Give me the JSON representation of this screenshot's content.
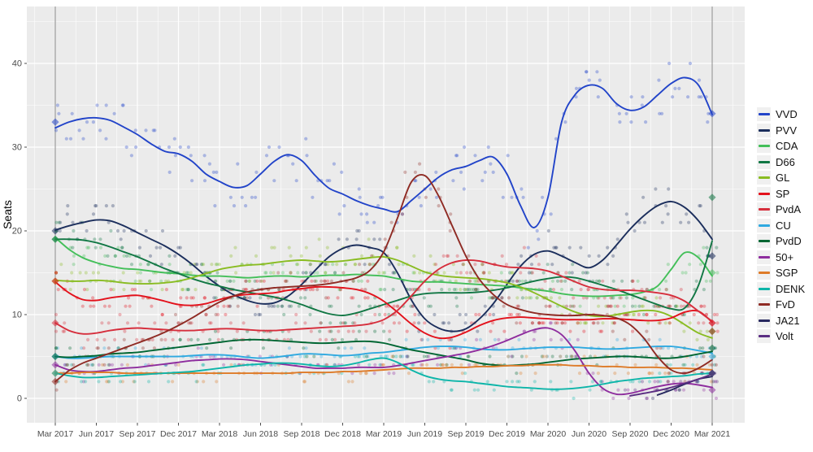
{
  "figure": {
    "ylabel": "Seats",
    "panel_bg": "#ebebeb",
    "grid_color": "#ffffff",
    "axis_text_color": "#4d4d4d",
    "vline_color": "#8a8a8a",
    "legend_key_bg": "#f0f0f0"
  },
  "axes": {
    "y_ticks": [
      0,
      10,
      20,
      30,
      40
    ],
    "x_ticks": [
      "Mar 2017",
      "Jun 2017",
      "Sep 2017",
      "Dec 2017",
      "Mar 2018",
      "Jun 2018",
      "Sep 2018",
      "Dec 2018",
      "Mar 2019",
      "Jun 2019",
      "Sep 2019",
      "Dec 2019",
      "Mar 2020",
      "Jun 2020",
      "Sep 2020",
      "Dec 2020",
      "Mar 2021"
    ]
  },
  "chart_data": {
    "type": "scatter",
    "subtype": "polls-with-smoothed-trend-lines",
    "title": "",
    "xlabel": "",
    "ylabel": "Seats",
    "ylim": [
      0,
      46.5
    ],
    "x_monthly": {
      "start": "Mar 2017",
      "end": "Mar 2021",
      "n_points": 49
    },
    "tick_labels": [
      "Mar 2017",
      "Jun 2017",
      "Sep 2017",
      "Dec 2017",
      "Mar 2018",
      "Jun 2018",
      "Sep 2018",
      "Dec 2018",
      "Mar 2019",
      "Jun 2019",
      "Sep 2019",
      "Dec 2019",
      "Mar 2020",
      "Jun 2020",
      "Sep 2020",
      "Dec 2020",
      "Mar 2021"
    ],
    "election_vlines": [
      "Mar 2017",
      "Mar 2021"
    ],
    "legend_position": "right",
    "series": [
      {
        "name": "VVD",
        "color": "#2244c9",
        "election_2017": 33,
        "election_2021": 34,
        "values": [
          32.3,
          33.0,
          33.4,
          33.5,
          33.2,
          32.4,
          31.5,
          30.4,
          29.5,
          29.2,
          28.3,
          26.8,
          25.9,
          25.2,
          25.4,
          26.8,
          28.3,
          29.1,
          28.4,
          26.6,
          25.1,
          24.4,
          23.6,
          23.0,
          22.6,
          22.3,
          23.6,
          25.0,
          26.4,
          27.3,
          27.7,
          28.4,
          28.8,
          26.8,
          23.0,
          20.4,
          24.0,
          33.0,
          36.3,
          37.4,
          37.0,
          35.2,
          34.4,
          34.8,
          36.2,
          37.6,
          38.3,
          37.4,
          33.9
        ]
      },
      {
        "name": "PVV",
        "color": "#1b2e5c",
        "election_2017": 20,
        "election_2021": 17,
        "values": [
          20.1,
          20.6,
          21.0,
          21.3,
          21.2,
          20.6,
          19.8,
          19.0,
          18.2,
          17.2,
          16.0,
          14.6,
          13.4,
          12.4,
          11.7,
          11.3,
          11.4,
          12.2,
          13.6,
          15.3,
          16.9,
          17.9,
          18.3,
          18.0,
          17.4,
          15.0,
          11.8,
          9.5,
          8.4,
          8.0,
          8.3,
          9.5,
          11.3,
          13.6,
          15.8,
          17.2,
          17.6,
          17.0,
          16.2,
          15.6,
          16.5,
          18.3,
          20.2,
          21.8,
          23.0,
          23.5,
          22.8,
          21.2,
          19.0
        ]
      },
      {
        "name": "CDA",
        "color": "#43bf59",
        "election_2017": 19,
        "election_2021": 15,
        "values": [
          19.2,
          17.8,
          16.8,
          16.2,
          15.8,
          15.5,
          15.4,
          15.2,
          15.0,
          14.9,
          14.7,
          14.6,
          14.6,
          14.5,
          14.4,
          14.5,
          14.6,
          14.6,
          14.5,
          14.6,
          14.7,
          14.7,
          14.8,
          14.7,
          14.6,
          14.3,
          14.0,
          13.9,
          13.9,
          13.8,
          13.7,
          13.6,
          13.5,
          13.4,
          13.2,
          13.0,
          12.8,
          12.5,
          12.3,
          12.2,
          12.2,
          12.3,
          12.4,
          12.7,
          13.4,
          15.4,
          17.4,
          16.8,
          14.6
        ]
      },
      {
        "name": "D66",
        "color": "#117744",
        "election_2017": 19,
        "election_2021": 24,
        "values": [
          19.0,
          19.0,
          18.9,
          18.6,
          18.1,
          17.5,
          16.9,
          16.2,
          15.5,
          14.9,
          14.3,
          13.8,
          13.4,
          13.0,
          12.7,
          12.4,
          12.1,
          11.7,
          11.2,
          10.6,
          10.1,
          9.9,
          10.2,
          10.7,
          11.2,
          11.7,
          12.2,
          12.5,
          12.6,
          12.6,
          12.6,
          12.7,
          12.9,
          13.2,
          13.6,
          14.0,
          14.3,
          14.5,
          14.4,
          14.0,
          13.5,
          13.0,
          12.4,
          11.8,
          11.2,
          10.7,
          10.8,
          13.5,
          18.8
        ]
      },
      {
        "name": "GL",
        "color": "#89bc21",
        "election_2017": 14,
        "election_2021": 8,
        "values": [
          14.1,
          14.0,
          14.0,
          14.1,
          14.0,
          13.8,
          13.7,
          13.7,
          13.8,
          14.0,
          14.4,
          14.9,
          15.4,
          15.7,
          15.9,
          16.0,
          16.2,
          16.4,
          16.5,
          16.4,
          16.3,
          16.4,
          16.6,
          16.8,
          16.9,
          16.5,
          15.8,
          15.1,
          14.7,
          14.5,
          14.4,
          14.3,
          14.1,
          13.8,
          13.3,
          12.6,
          11.8,
          11.0,
          10.3,
          9.9,
          9.8,
          10.0,
          10.3,
          10.5,
          10.4,
          9.8,
          8.8,
          7.8,
          7.2
        ]
      },
      {
        "name": "SP",
        "color": "#e3111b",
        "election_2017": 14,
        "election_2021": 9,
        "values": [
          13.9,
          12.6,
          11.8,
          11.7,
          12.0,
          12.2,
          12.3,
          12.0,
          11.6,
          11.2,
          11.1,
          11.3,
          11.8,
          12.2,
          12.4,
          12.5,
          12.6,
          12.9,
          13.1,
          13.3,
          13.3,
          13.2,
          13.0,
          12.5,
          11.6,
          10.3,
          8.9,
          7.8,
          7.2,
          7.3,
          7.9,
          8.7,
          9.3,
          9.6,
          9.7,
          9.6,
          9.5,
          9.4,
          9.4,
          9.4,
          9.5,
          9.5,
          9.4,
          9.3,
          9.3,
          9.6,
          10.3,
          10.4,
          9.1
        ]
      },
      {
        "name": "PvdA",
        "color": "#d62e3c",
        "election_2017": 9,
        "election_2021": 9,
        "values": [
          9.0,
          8.1,
          7.7,
          7.8,
          8.1,
          8.3,
          8.4,
          8.3,
          8.2,
          8.1,
          8.1,
          8.2,
          8.3,
          8.3,
          8.2,
          8.1,
          8.1,
          8.2,
          8.3,
          8.4,
          8.5,
          8.6,
          8.7,
          8.9,
          9.4,
          10.5,
          12.2,
          14.0,
          15.4,
          16.2,
          16.5,
          16.4,
          16.0,
          15.7,
          15.6,
          15.5,
          15.2,
          14.6,
          13.9,
          13.3,
          13.0,
          12.9,
          12.9,
          12.8,
          12.6,
          12.3,
          11.6,
          10.4,
          9.2
        ]
      },
      {
        "name": "CU",
        "color": "#2fa9e0",
        "election_2017": 5,
        "election_2021": 5,
        "values": [
          5.0,
          4.8,
          4.8,
          4.9,
          5.0,
          5.0,
          5.0,
          5.0,
          5.0,
          5.0,
          5.1,
          5.2,
          5.2,
          5.1,
          4.9,
          4.8,
          4.9,
          5.1,
          5.3,
          5.3,
          5.2,
          5.1,
          5.2,
          5.4,
          5.5,
          5.7,
          5.9,
          6.1,
          6.2,
          6.2,
          6.1,
          5.9,
          5.8,
          5.8,
          5.9,
          6.0,
          6.1,
          6.1,
          6.1,
          6.0,
          5.9,
          5.9,
          6.0,
          6.1,
          6.2,
          6.2,
          6.0,
          5.7,
          5.4
        ]
      },
      {
        "name": "PvdD",
        "color": "#006633",
        "election_2017": 5,
        "election_2021": 6,
        "values": [
          5.0,
          4.9,
          5.0,
          5.1,
          5.3,
          5.4,
          5.5,
          5.7,
          5.9,
          6.1,
          6.3,
          6.5,
          6.7,
          6.9,
          7.0,
          7.0,
          6.9,
          6.8,
          6.7,
          6.6,
          6.6,
          6.7,
          6.8,
          6.8,
          6.6,
          6.2,
          5.8,
          5.5,
          5.2,
          4.9,
          4.6,
          4.2,
          4.0,
          3.9,
          4.0,
          4.1,
          4.3,
          4.5,
          4.7,
          4.8,
          4.9,
          5.0,
          5.0,
          4.9,
          4.8,
          4.8,
          5.0,
          5.3,
          5.6
        ]
      },
      {
        "name": "50+",
        "color": "#8e2d9e",
        "election_2017": 4,
        "election_2021": 1,
        "values": [
          4.0,
          3.4,
          3.2,
          3.2,
          3.4,
          3.6,
          3.7,
          3.9,
          4.1,
          4.3,
          4.5,
          4.6,
          4.7,
          4.7,
          4.6,
          4.4,
          4.2,
          4.0,
          3.8,
          3.6,
          3.6,
          3.6,
          3.7,
          3.7,
          3.7,
          3.9,
          4.2,
          4.5,
          4.8,
          5.1,
          5.4,
          5.8,
          6.3,
          6.9,
          7.6,
          8.2,
          8.4,
          7.6,
          5.6,
          3.0,
          1.2,
          0.5,
          0.6,
          1.0,
          1.4,
          1.7,
          1.8,
          1.6,
          1.3
        ]
      },
      {
        "name": "SGP",
        "color": "#de7b28",
        "election_2017": 3,
        "election_2021": 3,
        "values": [
          3.0,
          3.0,
          3.1,
          3.1,
          3.1,
          3.0,
          3.0,
          3.0,
          3.0,
          3.0,
          3.0,
          3.0,
          3.0,
          3.0,
          3.0,
          3.0,
          3.0,
          3.0,
          3.1,
          3.1,
          3.1,
          3.2,
          3.2,
          3.3,
          3.4,
          3.5,
          3.6,
          3.6,
          3.6,
          3.7,
          3.7,
          3.8,
          3.8,
          3.9,
          3.9,
          4.0,
          4.0,
          4.0,
          3.9,
          3.9,
          3.8,
          3.8,
          3.7,
          3.7,
          3.7,
          3.6,
          3.6,
          3.5,
          3.4
        ]
      },
      {
        "name": "DENK",
        "color": "#0db5a9",
        "election_2017": 3,
        "election_2021": 3,
        "values": [
          3.0,
          2.7,
          2.5,
          2.5,
          2.6,
          2.7,
          2.8,
          2.9,
          3.0,
          3.1,
          3.2,
          3.4,
          3.6,
          3.8,
          4.0,
          4.1,
          4.2,
          4.2,
          4.1,
          3.9,
          3.8,
          3.9,
          4.2,
          4.6,
          4.8,
          4.3,
          3.4,
          2.7,
          2.3,
          2.1,
          2.0,
          1.8,
          1.6,
          1.4,
          1.3,
          1.2,
          1.1,
          1.1,
          1.2,
          1.4,
          1.7,
          2.0,
          2.2,
          2.4,
          2.5,
          2.6,
          2.7,
          2.9,
          3.0
        ]
      },
      {
        "name": "FvD",
        "color": "#8f2b24",
        "election_2017": 2,
        "election_2021": 8,
        "values": [
          2.0,
          3.3,
          4.2,
          4.8,
          5.4,
          6.0,
          6.6,
          7.2,
          7.9,
          8.7,
          9.6,
          10.6,
          11.5,
          12.2,
          12.7,
          13.0,
          13.2,
          13.3,
          13.4,
          13.5,
          13.7,
          14.0,
          14.4,
          15.3,
          17.5,
          21.5,
          25.8,
          26.6,
          24.2,
          20.6,
          17.0,
          14.2,
          12.4,
          11.2,
          10.6,
          10.2,
          10.0,
          9.9,
          9.9,
          10.0,
          9.9,
          9.6,
          8.8,
          7.2,
          5.0,
          3.4,
          3.0,
          3.6,
          4.6
        ]
      },
      {
        "name": "JA21",
        "color": "#27285f",
        "election_2017": null,
        "election_2021": 3,
        "values": [
          null,
          null,
          null,
          null,
          null,
          null,
          null,
          null,
          null,
          null,
          null,
          null,
          null,
          null,
          null,
          null,
          null,
          null,
          null,
          null,
          null,
          null,
          null,
          null,
          null,
          null,
          null,
          null,
          null,
          null,
          null,
          null,
          null,
          null,
          null,
          null,
          null,
          null,
          null,
          null,
          null,
          null,
          null,
          null,
          0.4,
          1.0,
          1.7,
          2.3,
          2.6
        ]
      },
      {
        "name": "Volt",
        "color": "#5a2d82",
        "election_2017": null,
        "election_2021": 3,
        "values": [
          null,
          null,
          null,
          null,
          null,
          null,
          null,
          null,
          null,
          null,
          null,
          null,
          null,
          null,
          null,
          null,
          null,
          null,
          null,
          null,
          null,
          null,
          null,
          null,
          null,
          null,
          null,
          null,
          null,
          null,
          null,
          null,
          null,
          null,
          null,
          null,
          null,
          null,
          null,
          null,
          null,
          null,
          0.3,
          0.6,
          0.9,
          1.3,
          1.8,
          2.3,
          2.9
        ]
      }
    ]
  }
}
